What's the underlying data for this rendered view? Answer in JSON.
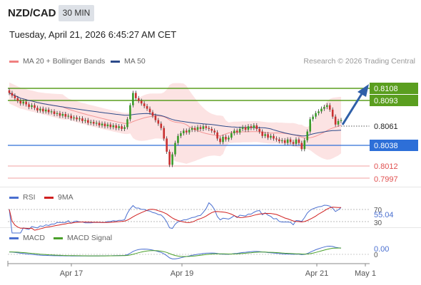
{
  "header": {
    "symbol": "NZD/CAD",
    "timeframe": "30 MIN",
    "datetime": "Tuesday, April 21, 2026 6:45:27 AM CET"
  },
  "legend": {
    "ma20_label": "MA 20 + Bollinger Bands",
    "ma50_label": "MA 50",
    "ma20_color": "#f08080",
    "ma50_color": "#2c4a8a",
    "credit": "Research © 2026 Trading Central"
  },
  "levels": {
    "r2": "0.8108",
    "r1": "0.8093",
    "last": "0.8061",
    "pivot": "0.8038",
    "s1": "0.8012",
    "s2": "0.7997",
    "resistance_color": "#5a9e1f",
    "pivot_color": "#2d6fd8",
    "support_color": "#e05050"
  },
  "rsi": {
    "label": "RSI",
    "ma_label": "9MA",
    "value": "55.04",
    "level_high": "70",
    "level_low": "30",
    "rsi_color": "#4a6fd0",
    "ma_color": "#d02020"
  },
  "macd": {
    "label": "MACD",
    "signal_label": "MACD Signal",
    "value": "0.00",
    "zero": "0",
    "macd_color": "#4a6fd0",
    "signal_color": "#4aa02a"
  },
  "x_axis": {
    "ticks": [
      "Apr 17",
      "Apr 19",
      "Apr 21",
      "May 1"
    ]
  },
  "chart_data": {
    "type": "candlestick",
    "price_ylim": [
      0.799,
      0.812
    ],
    "closes": [
      0.8092,
      0.8089,
      0.8086,
      0.8083,
      0.808,
      0.8082,
      0.8079,
      0.8076,
      0.8078,
      0.8075,
      0.8072,
      0.8074,
      0.8071,
      0.8073,
      0.807,
      0.8071,
      0.8068,
      0.8069,
      0.8066,
      0.8068,
      0.8065,
      0.8066,
      0.8063,
      0.8064,
      0.8062,
      0.8063,
      0.806,
      0.8061,
      0.8058,
      0.8059,
      0.8057,
      0.8058,
      0.8055,
      0.8057,
      0.8054,
      0.8056,
      0.8053,
      0.8055,
      0.8052,
      0.8054,
      0.8051,
      0.8053,
      0.8062,
      0.8078,
      0.8092,
      0.8086,
      0.8083,
      0.808,
      0.8077,
      0.8074,
      0.807,
      0.8066,
      0.8061,
      0.8057,
      0.8052,
      0.804,
      0.8025,
      0.801,
      0.8022,
      0.8035,
      0.8043,
      0.8046,
      0.8049,
      0.8047,
      0.805,
      0.8052,
      0.805,
      0.8053,
      0.8051,
      0.8054,
      0.8052,
      0.8051,
      0.8049,
      0.8047,
      0.804,
      0.8036,
      0.8042,
      0.8039,
      0.8041,
      0.8046,
      0.8049,
      0.8047,
      0.8051,
      0.8053,
      0.805,
      0.8054,
      0.8052,
      0.8055,
      0.8051,
      0.8048,
      0.8043,
      0.8045,
      0.8041,
      0.8043,
      0.804,
      0.8039,
      0.8037,
      0.8038,
      0.8035,
      0.8039,
      0.8036,
      0.8034,
      0.8039,
      0.8035,
      0.8028,
      0.8038,
      0.8048,
      0.8062,
      0.8065,
      0.8069,
      0.8071,
      0.8074,
      0.8076,
      0.8078,
      0.8073,
      0.8065,
      0.8056,
      0.806,
      0.8061
    ],
    "rsi_ylim": [
      20,
      80
    ],
    "macd_ylim": [
      -0.0015,
      0.0012
    ]
  }
}
